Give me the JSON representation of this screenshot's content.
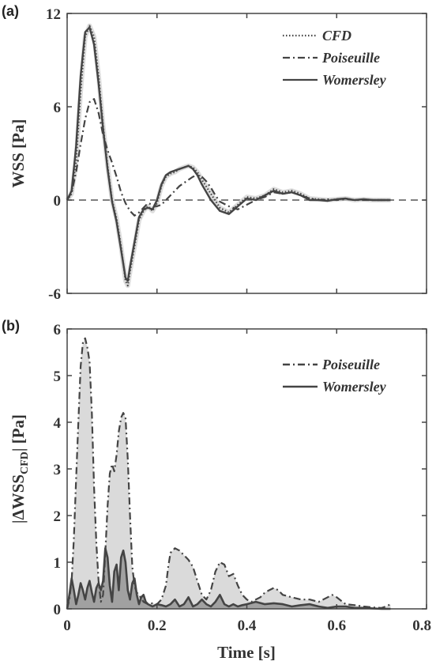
{
  "chart_data": [
    {
      "panel": "(a)",
      "type": "line",
      "ylabel": "WSS [Pa]",
      "xlim": [
        0,
        0.8
      ],
      "ylim": [
        -6,
        12
      ],
      "yticks": [
        "-6",
        "0",
        "6",
        "12"
      ],
      "legend_position": "top-right",
      "zero_line": true,
      "series": [
        {
          "name": "CFD",
          "style": "dotted",
          "x": [
            0,
            0.01,
            0.02,
            0.03,
            0.04,
            0.05,
            0.06,
            0.07,
            0.08,
            0.09,
            0.1,
            0.11,
            0.12,
            0.13,
            0.135,
            0.14,
            0.15,
            0.16,
            0.17,
            0.18,
            0.19,
            0.2,
            0.21,
            0.22,
            0.23,
            0.24,
            0.25,
            0.26,
            0.27,
            0.28,
            0.29,
            0.3,
            0.32,
            0.34,
            0.36,
            0.38,
            0.4,
            0.42,
            0.44,
            0.46,
            0.48,
            0.5,
            0.52,
            0.54,
            0.56,
            0.58,
            0.6,
            0.62,
            0.64,
            0.66,
            0.68,
            0.7,
            0.72
          ],
          "y": [
            0,
            0.4,
            2.5,
            7,
            10.5,
            11.2,
            10.5,
            8,
            4.8,
            2.2,
            0,
            -1.2,
            -3,
            -5.2,
            -5.5,
            -4.6,
            -3,
            -1.3,
            -0.7,
            -0.4,
            -0.7,
            -0.2,
            0.9,
            1.5,
            1.7,
            1.8,
            2,
            2.1,
            2.2,
            2.1,
            1.8,
            1.3,
            0.4,
            -0.5,
            -0.8,
            -0.3,
            0.2,
            0.1,
            0.3,
            0.7,
            0.5,
            0.6,
            0.4,
            0.1,
            0.05,
            0,
            0.05,
            0.1,
            0,
            0.05,
            0,
            0,
            0
          ]
        },
        {
          "name": "Poiseuille",
          "style": "dashdot",
          "x": [
            0,
            0.01,
            0.02,
            0.03,
            0.04,
            0.05,
            0.06,
            0.07,
            0.08,
            0.09,
            0.1,
            0.11,
            0.12,
            0.13,
            0.14,
            0.15,
            0.16,
            0.17,
            0.18,
            0.19,
            0.2,
            0.21,
            0.22,
            0.23,
            0.24,
            0.25,
            0.26,
            0.27,
            0.28,
            0.29,
            0.3,
            0.31,
            0.32,
            0.33,
            0.34,
            0.36,
            0.38,
            0.4,
            0.42,
            0.44,
            0.46,
            0.48,
            0.5,
            0.52,
            0.54,
            0.56,
            0.58,
            0.6,
            0.62,
            0.64,
            0.66,
            0.68,
            0.7,
            0.72
          ],
          "y": [
            0,
            0.5,
            1.8,
            3.6,
            5.2,
            6.3,
            6.5,
            5.6,
            4.2,
            3.2,
            2.4,
            1.5,
            0.5,
            -0.2,
            -0.7,
            -1,
            -0.8,
            -0.5,
            -0.2,
            -0.3,
            -0.4,
            -0.3,
            0,
            0.3,
            0.6,
            0.9,
            1.1,
            1.3,
            1.5,
            1.6,
            1.5,
            1.2,
            0.8,
            0.3,
            -0.1,
            -0.4,
            -0.6,
            -0.3,
            0,
            0.2,
            0.5,
            0.4,
            0.5,
            0.3,
            0.1,
            0,
            0.05,
            0,
            0.05,
            0,
            0,
            0,
            0,
            0
          ]
        },
        {
          "name": "Womersley",
          "style": "solid",
          "x": [
            0,
            0.01,
            0.02,
            0.03,
            0.04,
            0.05,
            0.06,
            0.07,
            0.08,
            0.09,
            0.1,
            0.11,
            0.12,
            0.13,
            0.135,
            0.14,
            0.15,
            0.16,
            0.17,
            0.18,
            0.19,
            0.2,
            0.21,
            0.22,
            0.23,
            0.24,
            0.25,
            0.26,
            0.27,
            0.28,
            0.29,
            0.3,
            0.32,
            0.34,
            0.36,
            0.38,
            0.4,
            0.42,
            0.44,
            0.46,
            0.48,
            0.5,
            0.52,
            0.54,
            0.56,
            0.58,
            0.6,
            0.62,
            0.64,
            0.66,
            0.68,
            0.7,
            0.72
          ],
          "y": [
            0,
            0.6,
            3.5,
            8,
            10.8,
            11.1,
            10,
            7.5,
            4.6,
            2,
            -0.1,
            -1.4,
            -3.2,
            -5,
            -5.2,
            -4.3,
            -2.7,
            -1.1,
            -0.6,
            -0.5,
            -0.6,
            0,
            1,
            1.6,
            1.8,
            1.9,
            2,
            2.1,
            2.2,
            2,
            1.6,
            1,
            0,
            -0.7,
            -0.9,
            -0.4,
            0.1,
            0,
            0.3,
            0.6,
            0.4,
            0.5,
            0.3,
            0,
            0,
            -0.05,
            0.05,
            0.1,
            0,
            0.05,
            0,
            0,
            0
          ]
        }
      ]
    },
    {
      "panel": "(b)",
      "type": "area",
      "ylabel": "|ΔWSS",
      "ylabel_subscript": "CFD",
      "ylabel_suffix": "| [Pa]",
      "xlabel": "Time [s]",
      "xlim": [
        0,
        0.8
      ],
      "ylim": [
        0,
        6
      ],
      "xticks": [
        "0",
        "0.2",
        "0.4",
        "0.6",
        "0.8"
      ],
      "yticks": [
        "0",
        "1",
        "2",
        "3",
        "4",
        "5",
        "6"
      ],
      "legend_position": "top-right",
      "series": [
        {
          "name": "Poiseuille",
          "style": "dashdot",
          "fill": "#d6d6d6",
          "x": [
            0,
            0.005,
            0.01,
            0.015,
            0.02,
            0.025,
            0.03,
            0.035,
            0.04,
            0.045,
            0.05,
            0.055,
            0.06,
            0.065,
            0.07,
            0.075,
            0.08,
            0.085,
            0.09,
            0.095,
            0.1,
            0.105,
            0.11,
            0.115,
            0.12,
            0.125,
            0.13,
            0.135,
            0.14,
            0.145,
            0.15,
            0.155,
            0.16,
            0.17,
            0.18,
            0.19,
            0.2,
            0.21,
            0.22,
            0.225,
            0.23,
            0.24,
            0.25,
            0.26,
            0.27,
            0.28,
            0.29,
            0.3,
            0.31,
            0.32,
            0.33,
            0.34,
            0.35,
            0.36,
            0.37,
            0.38,
            0.39,
            0.4,
            0.41,
            0.42,
            0.43,
            0.44,
            0.45,
            0.46,
            0.47,
            0.48,
            0.5,
            0.52,
            0.54,
            0.56,
            0.58,
            0.59,
            0.6,
            0.62,
            0.64,
            0.66,
            0.68,
            0.7,
            0.71,
            0.72
          ],
          "y": [
            0,
            0.2,
            0.6,
            1.5,
            2.8,
            4,
            5.2,
            5.7,
            5.8,
            5.6,
            5.3,
            4.2,
            2.6,
            1.4,
            0.6,
            0.15,
            0.3,
            1.2,
            2.2,
            2.9,
            3.1,
            2.95,
            3.3,
            3.8,
            4.1,
            4.2,
            4.1,
            3.2,
            2,
            0.9,
            0.5,
            0.35,
            0.3,
            0.15,
            0.1,
            0.12,
            0.1,
            0.2,
            0.5,
            0.9,
            1.2,
            1.3,
            1.25,
            1.15,
            1.05,
            0.9,
            0.6,
            0.3,
            0.2,
            0.4,
            0.8,
            1,
            0.95,
            0.7,
            0.75,
            0.5,
            0.3,
            0.2,
            0.15,
            0.2,
            0.25,
            0.35,
            0.4,
            0.45,
            0.4,
            0.3,
            0.25,
            0.2,
            0.2,
            0.15,
            0.25,
            0.3,
            0.25,
            0.1,
            0.08,
            0.05,
            0.03,
            0.02,
            0.05,
            0.1
          ]
        },
        {
          "name": "Womersley",
          "style": "solid",
          "fill": "#9a9a9a",
          "x": [
            0,
            0.005,
            0.01,
            0.015,
            0.02,
            0.025,
            0.03,
            0.035,
            0.04,
            0.045,
            0.05,
            0.055,
            0.06,
            0.065,
            0.07,
            0.075,
            0.08,
            0.085,
            0.09,
            0.095,
            0.1,
            0.105,
            0.11,
            0.115,
            0.12,
            0.125,
            0.13,
            0.135,
            0.14,
            0.145,
            0.15,
            0.155,
            0.16,
            0.165,
            0.17,
            0.175,
            0.18,
            0.19,
            0.2,
            0.21,
            0.22,
            0.23,
            0.24,
            0.25,
            0.26,
            0.27,
            0.28,
            0.29,
            0.3,
            0.31,
            0.32,
            0.33,
            0.34,
            0.35,
            0.36,
            0.37,
            0.38,
            0.39,
            0.4,
            0.42,
            0.44,
            0.46,
            0.48,
            0.5,
            0.52,
            0.54,
            0.56,
            0.58,
            0.6,
            0.62,
            0.64,
            0.66,
            0.68,
            0.7,
            0.72
          ],
          "y": [
            0,
            0.3,
            0.65,
            0.4,
            0.1,
            0.3,
            0.55,
            0.4,
            0.2,
            0.45,
            0.6,
            0.35,
            0.15,
            0.45,
            0.55,
            0.4,
            0.6,
            1.3,
            1.1,
            0.5,
            0.15,
            0.8,
            0.95,
            0.4,
            1.1,
            1.25,
            1,
            0.4,
            0.2,
            0.55,
            0.65,
            0.3,
            0.1,
            0.25,
            0.3,
            0.15,
            0.1,
            0.05,
            0.1,
            0.08,
            0.05,
            0.1,
            0.2,
            0.05,
            0.1,
            0.25,
            0.05,
            0.1,
            0.2,
            0.1,
            0.05,
            0.15,
            0.3,
            0.1,
            0.05,
            0.1,
            0.05,
            0.08,
            0.1,
            0.15,
            0.1,
            0.12,
            0.1,
            0.05,
            0.08,
            0.1,
            0.05,
            0.02,
            0.05,
            0.05,
            0.02,
            0.02,
            0.01,
            0,
            0
          ]
        }
      ]
    }
  ]
}
